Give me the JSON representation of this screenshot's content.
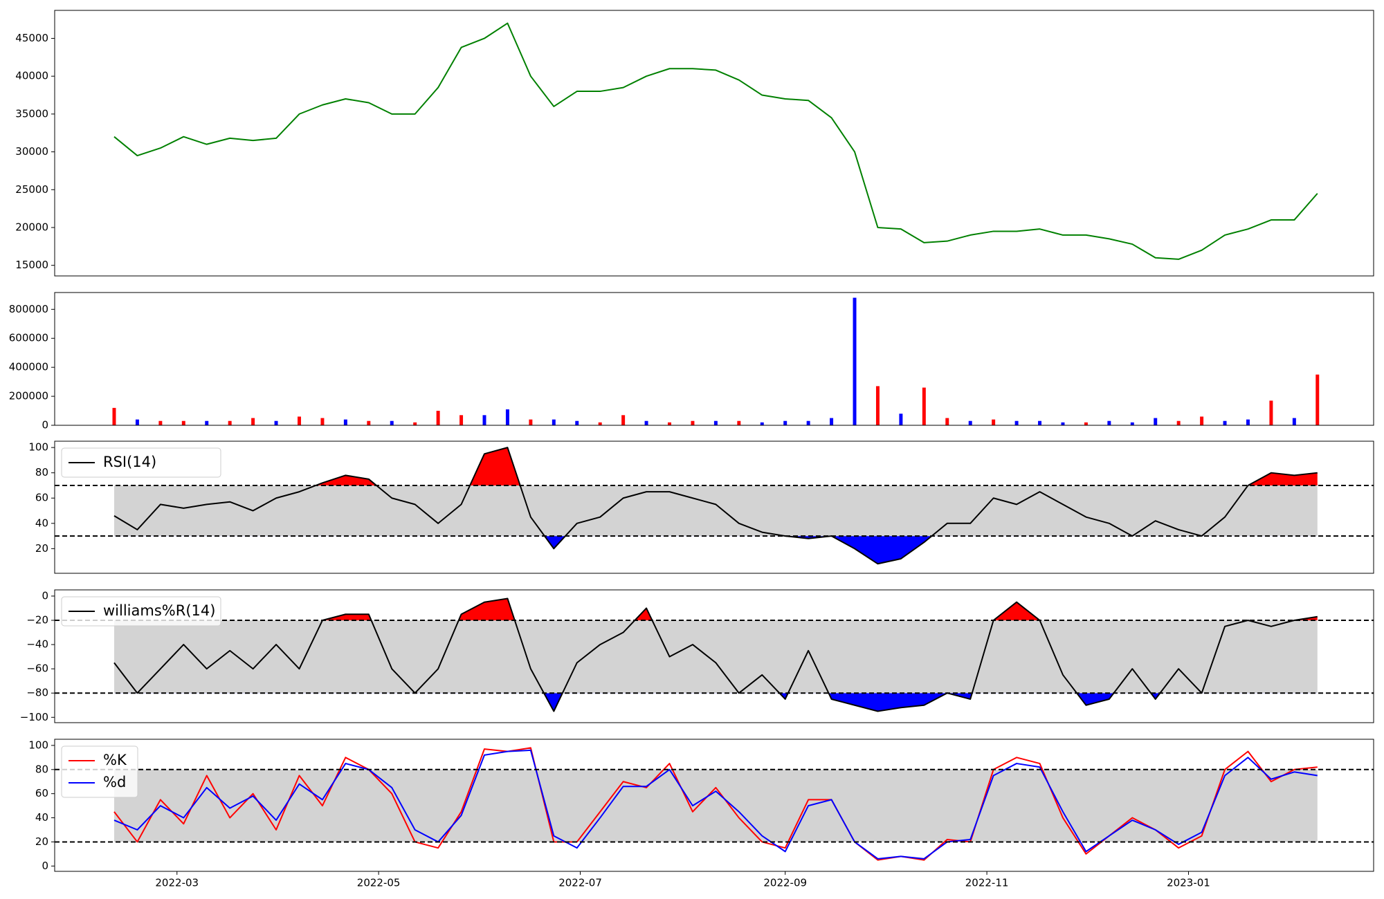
{
  "chart_data": [
    {
      "type": "line",
      "x": [
        19033,
        19040,
        19047,
        19054,
        19061,
        19068,
        19075,
        19082,
        19089,
        19096,
        19103,
        19110,
        19117,
        19124,
        19131,
        19138,
        19145,
        19152,
        19159,
        19166,
        19173,
        19180,
        19187,
        19194,
        19201,
        19208,
        19215,
        19222,
        19229,
        19236,
        19243,
        19250,
        19257,
        19264,
        19271,
        19278,
        19285,
        19292,
        19299,
        19306,
        19313,
        19320,
        19327,
        19334,
        19341,
        19348,
        19355,
        19362,
        19369,
        19376,
        19383,
        19390,
        19397
      ],
      "xlim": [
        19015,
        19414
      ],
      "ylim": [
        13600,
        48700
      ],
      "yticks": [
        15000,
        20000,
        25000,
        30000,
        35000,
        40000,
        45000
      ],
      "series": [
        {
          "color": "green",
          "values": [
            32000,
            29500,
            30500,
            32000,
            31000,
            31800,
            31500,
            31800,
            35000,
            36200,
            37000,
            36500,
            35000,
            35000,
            38500,
            43800,
            45000,
            47000,
            40000,
            36000,
            38000,
            38000,
            38500,
            40000,
            41000,
            41000,
            40800,
            39500,
            37500,
            37000,
            36800,
            34500,
            30000,
            20000,
            19800,
            18000,
            18200,
            19000,
            19500,
            19500,
            19800,
            19000,
            19000,
            18500,
            17800,
            16000,
            15800,
            17000,
            19000,
            19800,
            21000,
            21000,
            24500
          ]
        }
      ]
    },
    {
      "type": "bar",
      "x": [
        19033,
        19040,
        19047,
        19054,
        19061,
        19068,
        19075,
        19082,
        19089,
        19096,
        19103,
        19110,
        19117,
        19124,
        19131,
        19138,
        19145,
        19152,
        19159,
        19166,
        19173,
        19180,
        19187,
        19194,
        19201,
        19208,
        19215,
        19222,
        19229,
        19236,
        19243,
        19250,
        19257,
        19264,
        19271,
        19278,
        19285,
        19292,
        19299,
        19306,
        19313,
        19320,
        19327,
        19334,
        19341,
        19348,
        19355,
        19362,
        19369,
        19376,
        19383,
        19390,
        19397
      ],
      "xlim": [
        19015,
        19414
      ],
      "ylim": [
        0,
        916000
      ],
      "yticks": [
        0,
        200000,
        400000,
        600000,
        800000
      ],
      "values": [
        120000,
        40000,
        30000,
        30000,
        30000,
        30000,
        50000,
        30000,
        60000,
        50000,
        40000,
        30000,
        30000,
        20000,
        100000,
        70000,
        70000,
        110000,
        40000,
        40000,
        30000,
        20000,
        70000,
        30000,
        20000,
        30000,
        30000,
        30000,
        20000,
        30000,
        30000,
        50000,
        880000,
        270000,
        80000,
        260000,
        50000,
        30000,
        40000,
        30000,
        30000,
        20000,
        20000,
        30000,
        20000,
        50000,
        30000,
        60000,
        30000,
        40000,
        170000,
        50000,
        350000
      ],
      "colors": [
        "red",
        "blue",
        "red",
        "red",
        "blue",
        "red",
        "red",
        "blue",
        "red",
        "red",
        "blue",
        "red",
        "blue",
        "red",
        "red",
        "red",
        "blue",
        "blue",
        "red",
        "blue",
        "blue",
        "red",
        "red",
        "blue",
        "red",
        "red",
        "blue",
        "red",
        "blue",
        "blue",
        "blue",
        "blue",
        "blue",
        "red",
        "blue",
        "red",
        "red",
        "blue",
        "red",
        "blue",
        "blue",
        "blue",
        "red",
        "blue",
        "blue",
        "blue",
        "red",
        "red",
        "blue",
        "blue",
        "red",
        "blue",
        "red"
      ]
    },
    {
      "type": "line",
      "x": [
        19033,
        19040,
        19047,
        19054,
        19061,
        19068,
        19075,
        19082,
        19089,
        19096,
        19103,
        19110,
        19117,
        19124,
        19131,
        19138,
        19145,
        19152,
        19159,
        19166,
        19173,
        19180,
        19187,
        19194,
        19201,
        19208,
        19215,
        19222,
        19229,
        19236,
        19243,
        19250,
        19257,
        19264,
        19271,
        19278,
        19285,
        19292,
        19299,
        19306,
        19313,
        19320,
        19327,
        19334,
        19341,
        19348,
        19355,
        19362,
        19369,
        19376,
        19383,
        19390,
        19397
      ],
      "xlim": [
        19015,
        19414
      ],
      "ylim": [
        0.5,
        105
      ],
      "yticks": [
        20,
        40,
        60,
        80,
        100
      ],
      "hlines": [
        30,
        70
      ],
      "band_color": "#d3d3d3",
      "above_color": "red",
      "below_color": "blue",
      "legend": "upper left",
      "series": [
        {
          "name": "RSI(14)",
          "color": "black",
          "values": [
            46,
            35,
            55,
            52,
            55,
            57,
            50,
            60,
            65,
            72,
            78,
            75,
            60,
            55,
            40,
            55,
            95,
            100,
            45,
            20,
            40,
            45,
            60,
            65,
            65,
            60,
            55,
            40,
            33,
            30,
            28,
            30,
            20,
            8,
            12,
            25,
            40,
            40,
            60,
            55,
            65,
            55,
            45,
            40,
            30,
            42,
            35,
            30,
            45,
            70,
            80,
            78,
            80
          ]
        }
      ]
    },
    {
      "type": "line",
      "x": [
        19033,
        19040,
        19047,
        19054,
        19061,
        19068,
        19075,
        19082,
        19089,
        19096,
        19103,
        19110,
        19117,
        19124,
        19131,
        19138,
        19145,
        19152,
        19159,
        19166,
        19173,
        19180,
        19187,
        19194,
        19201,
        19208,
        19215,
        19222,
        19229,
        19236,
        19243,
        19250,
        19257,
        19264,
        19271,
        19278,
        19285,
        19292,
        19299,
        19306,
        19313,
        19320,
        19327,
        19334,
        19341,
        19348,
        19355,
        19362,
        19369,
        19376,
        19383,
        19390,
        19397
      ],
      "xlim": [
        19015,
        19414
      ],
      "ylim": [
        -104.4,
        5.1
      ],
      "yticks": [
        {
          "value": -100,
          "label": "−100"
        },
        {
          "value": -80,
          "label": "−80"
        },
        {
          "value": -60,
          "label": "−60"
        },
        {
          "value": -40,
          "label": "−40"
        },
        {
          "value": -20,
          "label": "−20"
        },
        0
      ],
      "hlines": [
        -80,
        -20
      ],
      "band_color": "#d3d3d3",
      "above_color": "red",
      "below_color": "blue",
      "legend": "upper left",
      "series": [
        {
          "name": "williams%R(14)",
          "color": "black",
          "values": [
            -55,
            -80,
            -60,
            -40,
            -60,
            -45,
            -60,
            -40,
            -60,
            -20,
            -15,
            -15,
            -60,
            -80,
            -60,
            -15,
            -5,
            -2,
            -60,
            -95,
            -55,
            -40,
            -30,
            -10,
            -50,
            -40,
            -55,
            -80,
            -65,
            -85,
            -45,
            -85,
            -90,
            -95,
            -92,
            -90,
            -80,
            -85,
            -20,
            -5,
            -20,
            -65,
            -90,
            -85,
            -60,
            -85,
            -60,
            -80,
            -25,
            -20,
            -25,
            -20,
            -17
          ]
        }
      ]
    },
    {
      "type": "line",
      "x": [
        19033,
        19040,
        19047,
        19054,
        19061,
        19068,
        19075,
        19082,
        19089,
        19096,
        19103,
        19110,
        19117,
        19124,
        19131,
        19138,
        19145,
        19152,
        19159,
        19166,
        19173,
        19180,
        19187,
        19194,
        19201,
        19208,
        19215,
        19222,
        19229,
        19236,
        19243,
        19250,
        19257,
        19264,
        19271,
        19278,
        19285,
        19292,
        19299,
        19306,
        19313,
        19320,
        19327,
        19334,
        19341,
        19348,
        19355,
        19362,
        19369,
        19376,
        19383,
        19390,
        19397
      ],
      "xlim": [
        19015,
        19414
      ],
      "ylim": [
        -4.4,
        105.1
      ],
      "yticks": [
        0,
        20,
        40,
        60,
        80,
        100
      ],
      "xticks": [
        {
          "value": 19052,
          "label": "2022-03"
        },
        {
          "value": 19113,
          "label": "2022-05"
        },
        {
          "value": 19174,
          "label": "2022-07"
        },
        {
          "value": 19236,
          "label": "2022-09"
        },
        {
          "value": 19297,
          "label": "2022-11"
        },
        {
          "value": 19358,
          "label": "2023-01"
        }
      ],
      "hlines": [
        20,
        80
      ],
      "band_color": "#d3d3d3",
      "legend": "upper left",
      "series": [
        {
          "name": "%K",
          "color": "red",
          "values": [
            45,
            20,
            55,
            35,
            75,
            40,
            60,
            30,
            75,
            50,
            90,
            80,
            60,
            20,
            15,
            45,
            97,
            95,
            98,
            20,
            20,
            45,
            70,
            65,
            85,
            45,
            65,
            40,
            20,
            15,
            55,
            55,
            20,
            5,
            8,
            5,
            22,
            20,
            80,
            90,
            85,
            40,
            10,
            25,
            40,
            30,
            15,
            25,
            80,
            95,
            70,
            80,
            82
          ]
        },
        {
          "name": "%d",
          "color": "blue",
          "values": [
            38,
            30,
            50,
            40,
            65,
            48,
            58,
            38,
            68,
            55,
            85,
            80,
            65,
            30,
            20,
            42,
            92,
            95,
            96,
            25,
            15,
            40,
            66,
            66,
            80,
            50,
            62,
            45,
            25,
            12,
            50,
            55,
            20,
            6,
            8,
            6,
            20,
            22,
            75,
            85,
            82,
            45,
            12,
            25,
            38,
            30,
            18,
            28,
            75,
            90,
            72,
            78,
            75
          ]
        }
      ]
    }
  ]
}
